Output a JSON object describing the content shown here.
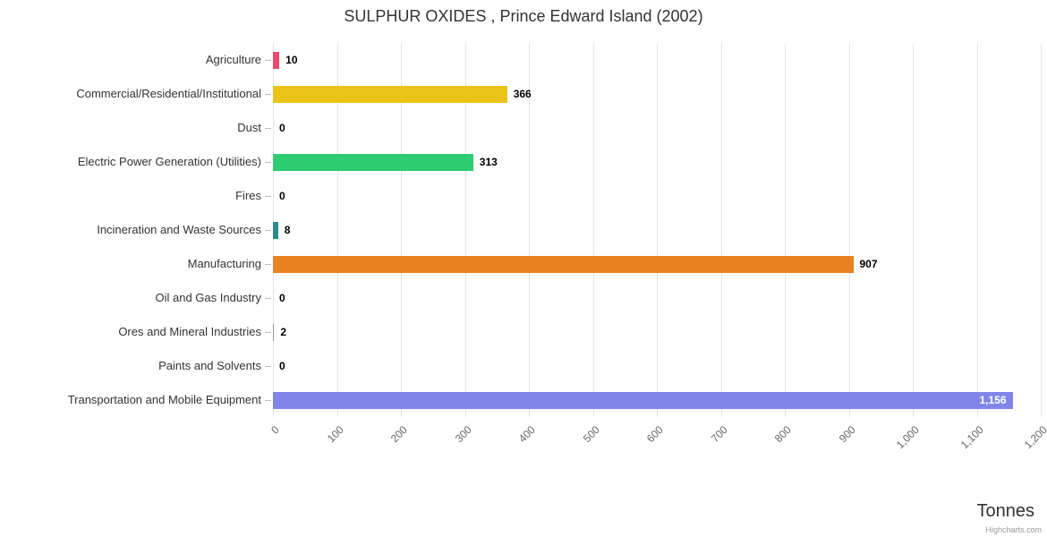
{
  "credits": "Highcharts.com",
  "chart_data": {
    "type": "bar",
    "orientation": "horizontal",
    "title": "SULPHUR OXIDES , Prince Edward Island (2002)",
    "xlabel": "Tonnes",
    "ylabel": "",
    "xlim": [
      0,
      1200
    ],
    "tick_interval": 100,
    "tick_labels": [
      "0",
      "100",
      "200",
      "300",
      "400",
      "500",
      "600",
      "700",
      "800",
      "900",
      "1,000",
      "1,100",
      "1,200"
    ],
    "grid": true,
    "legend": false,
    "categories": [
      "Agriculture",
      "Commercial/Residential/Institutional",
      "Dust",
      "Electric Power Generation (Utilities)",
      "Fires",
      "Incineration and Waste Sources",
      "Manufacturing",
      "Oil and Gas Industry",
      "Ores and Mineral Industries",
      "Paints and Solvents",
      "Transportation and Mobile Equipment"
    ],
    "values": [
      10,
      366,
      0,
      313,
      0,
      8,
      907,
      0,
      2,
      0,
      1156
    ],
    "value_labels": [
      "10",
      "366",
      "0",
      "313",
      "0",
      "8",
      "907",
      "0",
      "2",
      "0",
      "1,156"
    ],
    "colors": [
      "#ea4b6b",
      "#ecc318",
      null,
      "#2ecb70",
      null,
      "#2b8f8a",
      "#e8811f",
      null,
      null,
      null,
      "#8085e9"
    ],
    "label_inside": [
      false,
      false,
      false,
      false,
      false,
      false,
      false,
      false,
      false,
      false,
      true
    ]
  }
}
